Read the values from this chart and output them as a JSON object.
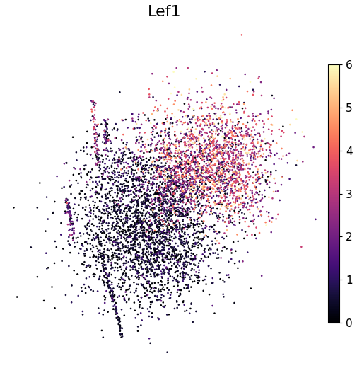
{
  "title": "Lef1",
  "title_fontsize": 16,
  "colorbar_ticks": [
    0,
    1,
    2,
    3,
    4,
    5,
    6
  ],
  "vmin": 0,
  "vmax": 6,
  "point_size": 3.5,
  "background_color": "#ffffff",
  "seed": 123,
  "figsize": [
    5.06,
    5.2
  ],
  "dpi": 100
}
